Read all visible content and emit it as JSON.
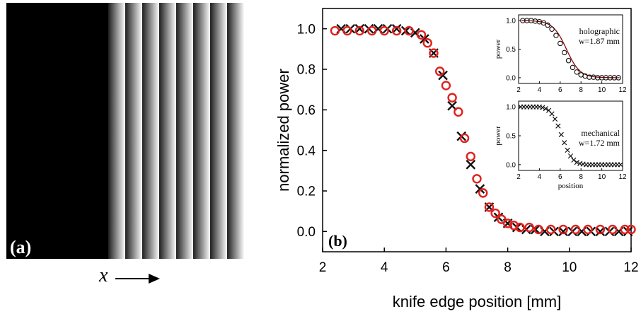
{
  "panel_a": {
    "label": "(a)",
    "axis_symbol": "x",
    "fringe_count": 8
  },
  "chart_data": [
    {
      "type": "scatter",
      "panel_label": "(b)",
      "xlabel": "knife edge position [mm]",
      "ylabel": "normalized power",
      "xlim": [
        2,
        12
      ],
      "ylim": [
        -0.1,
        1.1
      ],
      "xticks": [
        2,
        4,
        6,
        8,
        10,
        12
      ],
      "yticks": [
        0.0,
        0.2,
        0.4,
        0.6,
        0.8,
        1.0
      ],
      "grid": false,
      "series": [
        {
          "marker": "circle",
          "color": "#e0201c",
          "x": [
            2.4,
            2.8,
            3.2,
            3.6,
            4.0,
            4.4,
            4.8,
            5.2,
            5.4,
            5.6,
            5.8,
            6.0,
            6.2,
            6.4,
            6.6,
            6.8,
            7.0,
            7.2,
            7.4,
            7.6,
            7.8,
            8.0,
            8.2,
            8.4,
            8.7,
            9.0,
            9.4,
            9.8,
            10.2,
            10.6,
            11.0,
            11.4,
            11.8,
            12.0
          ],
          "y": [
            0.99,
            0.99,
            0.99,
            0.99,
            0.99,
            0.99,
            0.99,
            0.97,
            0.93,
            0.88,
            0.79,
            0.72,
            0.66,
            0.59,
            0.46,
            0.37,
            0.26,
            0.19,
            0.12,
            0.09,
            0.06,
            0.04,
            0.03,
            0.02,
            0.02,
            0.01,
            0.01,
            0.01,
            0.01,
            0.01,
            0.01,
            0.01,
            0.01,
            0.01
          ]
        },
        {
          "marker": "cross",
          "color": "#111111",
          "x": [
            2.6,
            2.9,
            3.2,
            3.5,
            3.8,
            4.1,
            4.4,
            4.7,
            5.0,
            5.3,
            5.6,
            5.9,
            6.2,
            6.5,
            6.8,
            7.1,
            7.4,
            7.7,
            8.0,
            8.3,
            8.6,
            8.9,
            9.2,
            9.5,
            9.8,
            10.1,
            10.4,
            10.7,
            11.0,
            11.3,
            11.6,
            11.9
          ],
          "y": [
            1.0,
            1.0,
            1.0,
            1.0,
            1.0,
            1.0,
            1.0,
            0.99,
            0.98,
            0.95,
            0.88,
            0.77,
            0.62,
            0.47,
            0.33,
            0.21,
            0.12,
            0.07,
            0.04,
            0.02,
            0.01,
            0.01,
            0.0,
            0.0,
            0.0,
            0.0,
            0.0,
            0.0,
            0.0,
            0.0,
            0.0,
            0.0
          ]
        }
      ]
    },
    {
      "type": "scatter",
      "ylabel": "power",
      "xlim": [
        2,
        12
      ],
      "ylim": [
        -0.1,
        1.1
      ],
      "xticks": [
        2,
        4,
        6,
        8,
        10,
        12
      ],
      "yticks": [
        0.0,
        0.5,
        1.0
      ],
      "annotation": [
        "holographic",
        "w=1.87 mm"
      ],
      "fit": {
        "center": 6.6,
        "w": 1.87
      },
      "series": [
        {
          "marker": "circle",
          "color": "#111111",
          "x": [
            2.4,
            2.8,
            3.2,
            3.6,
            4.0,
            4.4,
            4.8,
            5.2,
            5.6,
            6.0,
            6.4,
            6.8,
            7.2,
            7.6,
            8.0,
            8.4,
            8.8,
            9.2,
            9.6,
            10.0,
            10.4,
            10.8,
            11.2,
            11.6
          ],
          "y": [
            1.0,
            1.0,
            1.0,
            0.99,
            0.98,
            0.96,
            0.92,
            0.85,
            0.74,
            0.6,
            0.44,
            0.3,
            0.18,
            0.1,
            0.05,
            0.03,
            0.01,
            0.01,
            0.0,
            0.0,
            0.0,
            0.0,
            0.0,
            0.0
          ]
        }
      ]
    },
    {
      "type": "scatter",
      "xlabel": "position",
      "ylabel": "power",
      "xlim": [
        2,
        12
      ],
      "ylim": [
        -0.1,
        1.1
      ],
      "xticks": [
        2,
        4,
        6,
        8,
        10,
        12
      ],
      "yticks": [
        0.0,
        0.5,
        1.0
      ],
      "annotation": [
        "mechanical",
        "w=1.72 mm"
      ],
      "fit": {
        "center": 6.5,
        "w": 1.72
      },
      "series": [
        {
          "marker": "cross",
          "color": "#111111",
          "x": [
            2.2,
            2.5,
            2.8,
            3.1,
            3.4,
            3.7,
            4.0,
            4.3,
            4.6,
            4.9,
            5.2,
            5.5,
            5.8,
            6.1,
            6.4,
            6.7,
            7.0,
            7.3,
            7.6,
            7.9,
            8.2,
            8.5,
            8.8,
            9.1,
            9.4,
            9.7,
            10.0,
            10.3,
            10.6,
            10.9,
            11.2,
            11.5,
            11.8
          ],
          "y": [
            1.0,
            1.0,
            1.0,
            1.0,
            1.0,
            1.0,
            1.0,
            0.99,
            0.97,
            0.94,
            0.88,
            0.79,
            0.67,
            0.52,
            0.38,
            0.25,
            0.15,
            0.08,
            0.04,
            0.02,
            0.01,
            0.0,
            0.0,
            0.0,
            0.0,
            0.0,
            0.0,
            0.0,
            0.0,
            0.0,
            0.0,
            0.0,
            0.0
          ]
        }
      ]
    }
  ]
}
